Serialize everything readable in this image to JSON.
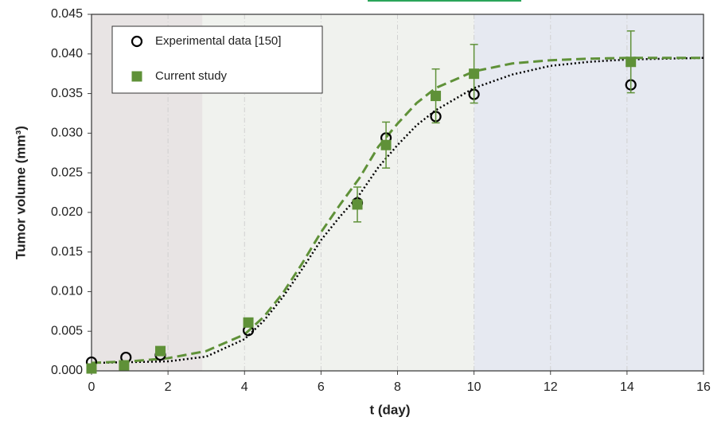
{
  "chart_data": {
    "type": "scatter",
    "xlabel": "t (day)",
    "ylabel": "Tumor volume (mm³)",
    "xlim": [
      0,
      16
    ],
    "ylim": [
      0,
      0.045
    ],
    "xticks": [
      0,
      2,
      4,
      6,
      8,
      10,
      12,
      14,
      16
    ],
    "yticks": [
      {
        "value": 0,
        "label": "0.000"
      },
      {
        "value": 0.005,
        "label": "0.005"
      },
      {
        "value": 0.01,
        "label": "0.010"
      },
      {
        "value": 0.015,
        "label": "0.015"
      },
      {
        "value": 0.02,
        "label": "0.020"
      },
      {
        "value": 0.025,
        "label": "0.025"
      },
      {
        "value": 0.03,
        "label": "0.030"
      },
      {
        "value": 0.035,
        "label": "0.035"
      },
      {
        "value": 0.04,
        "label": "0.040"
      },
      {
        "value": 0.045,
        "label": "0.045"
      }
    ],
    "xgrid": true,
    "legend": "top-left",
    "shaded_regions": [
      {
        "from": 0,
        "to": 2.9,
        "color": "#e8e4e4"
      },
      {
        "from": 2.9,
        "to": 10,
        "color": "#f0f2ee"
      },
      {
        "from": 10,
        "to": 16,
        "color": "#e6e9f1"
      }
    ],
    "series": [
      {
        "name": "Experimental data [150]",
        "marker": "circle",
        "color": "#000000",
        "x": [
          0,
          0.9,
          1.8,
          4.1,
          6.95,
          7.7,
          9,
          10,
          14.1
        ],
        "values": [
          0.0011,
          0.0017,
          0.002,
          0.0051,
          0.0212,
          0.0294,
          0.0321,
          0.0349,
          0.0361
        ]
      },
      {
        "name": "Current study",
        "marker": "square",
        "color": "#5f9138",
        "x": [
          0,
          0.85,
          1.8,
          4.1,
          6.95,
          7.7,
          9,
          10,
          14.1
        ],
        "values": [
          0.0003,
          0.0007,
          0.0025,
          0.0061,
          0.021,
          0.0285,
          0.0347,
          0.0375,
          0.039
        ],
        "errors": [
          0,
          0,
          0,
          0,
          0.0022,
          0.0029,
          0.0034,
          0.0037,
          0.0039
        ]
      }
    ],
    "curves": [
      {
        "style": "dotted",
        "color": "#000000",
        "x": [
          0,
          1,
          2,
          3,
          4,
          4.5,
          5,
          5.5,
          6,
          6.5,
          7,
          7.5,
          8,
          8.5,
          9,
          10,
          11,
          12,
          13,
          14,
          15,
          16
        ],
        "values": [
          0.001,
          0.0011,
          0.0012,
          0.0018,
          0.004,
          0.0063,
          0.0093,
          0.0128,
          0.0165,
          0.0195,
          0.0222,
          0.0257,
          0.0285,
          0.031,
          0.0329,
          0.0357,
          0.0374,
          0.0385,
          0.039,
          0.0393,
          0.0394,
          0.0395
        ]
      },
      {
        "style": "dashed",
        "color": "#5f9138",
        "x": [
          0,
          1,
          2,
          3,
          4,
          4.5,
          5,
          5.5,
          6,
          6.5,
          7,
          7.5,
          8,
          8.5,
          9,
          10,
          11,
          12,
          13,
          14,
          15,
          16
        ],
        "values": [
          0.001,
          0.0012,
          0.0016,
          0.0025,
          0.0046,
          0.0068,
          0.0098,
          0.0135,
          0.0175,
          0.021,
          0.0243,
          0.0283,
          0.0312,
          0.0338,
          0.0357,
          0.0378,
          0.0388,
          0.0392,
          0.0394,
          0.0395,
          0.0395,
          0.0395
        ]
      }
    ]
  }
}
